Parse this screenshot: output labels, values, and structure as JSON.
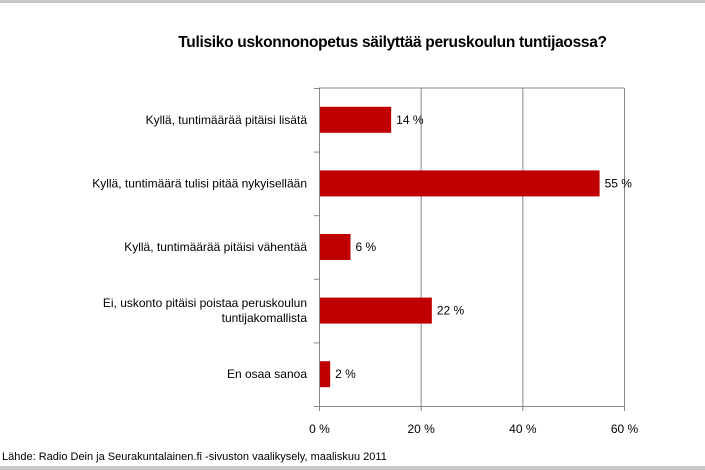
{
  "chart_data": {
    "type": "bar",
    "orientation": "horizontal",
    "title": "Tulisiko uskonnonopetus säilyttää peruskoulun tuntijaossa?",
    "categories": [
      [
        "Kyllä, tuntimäärää pitäisi lisätä"
      ],
      [
        "Kyllä, tuntimäärä tulisi pitää nykyisellään"
      ],
      [
        "Kyllä, tuntimäärää pitäisi vähentää"
      ],
      [
        "Ei, uskonto pitäisi poistaa peruskoulun",
        "tuntijakomallista"
      ],
      [
        "En osaa sanoa"
      ]
    ],
    "values": [
      14,
      55,
      6,
      22,
      2
    ],
    "data_labels": [
      "14 %",
      "55 %",
      "6 %",
      "22 %",
      "2 %"
    ],
    "xlim": [
      0,
      60
    ],
    "xticks": [
      0,
      20,
      40,
      60
    ],
    "xtick_labels": [
      "0 %",
      "20 %",
      "40 %",
      "60 %"
    ],
    "grid": true,
    "bar_color": "#c00000",
    "source": "Lähde: Radio Dein ja  Seurakuntalainen.fi -sivuston vaalikysely, maaliskuu 2011"
  }
}
